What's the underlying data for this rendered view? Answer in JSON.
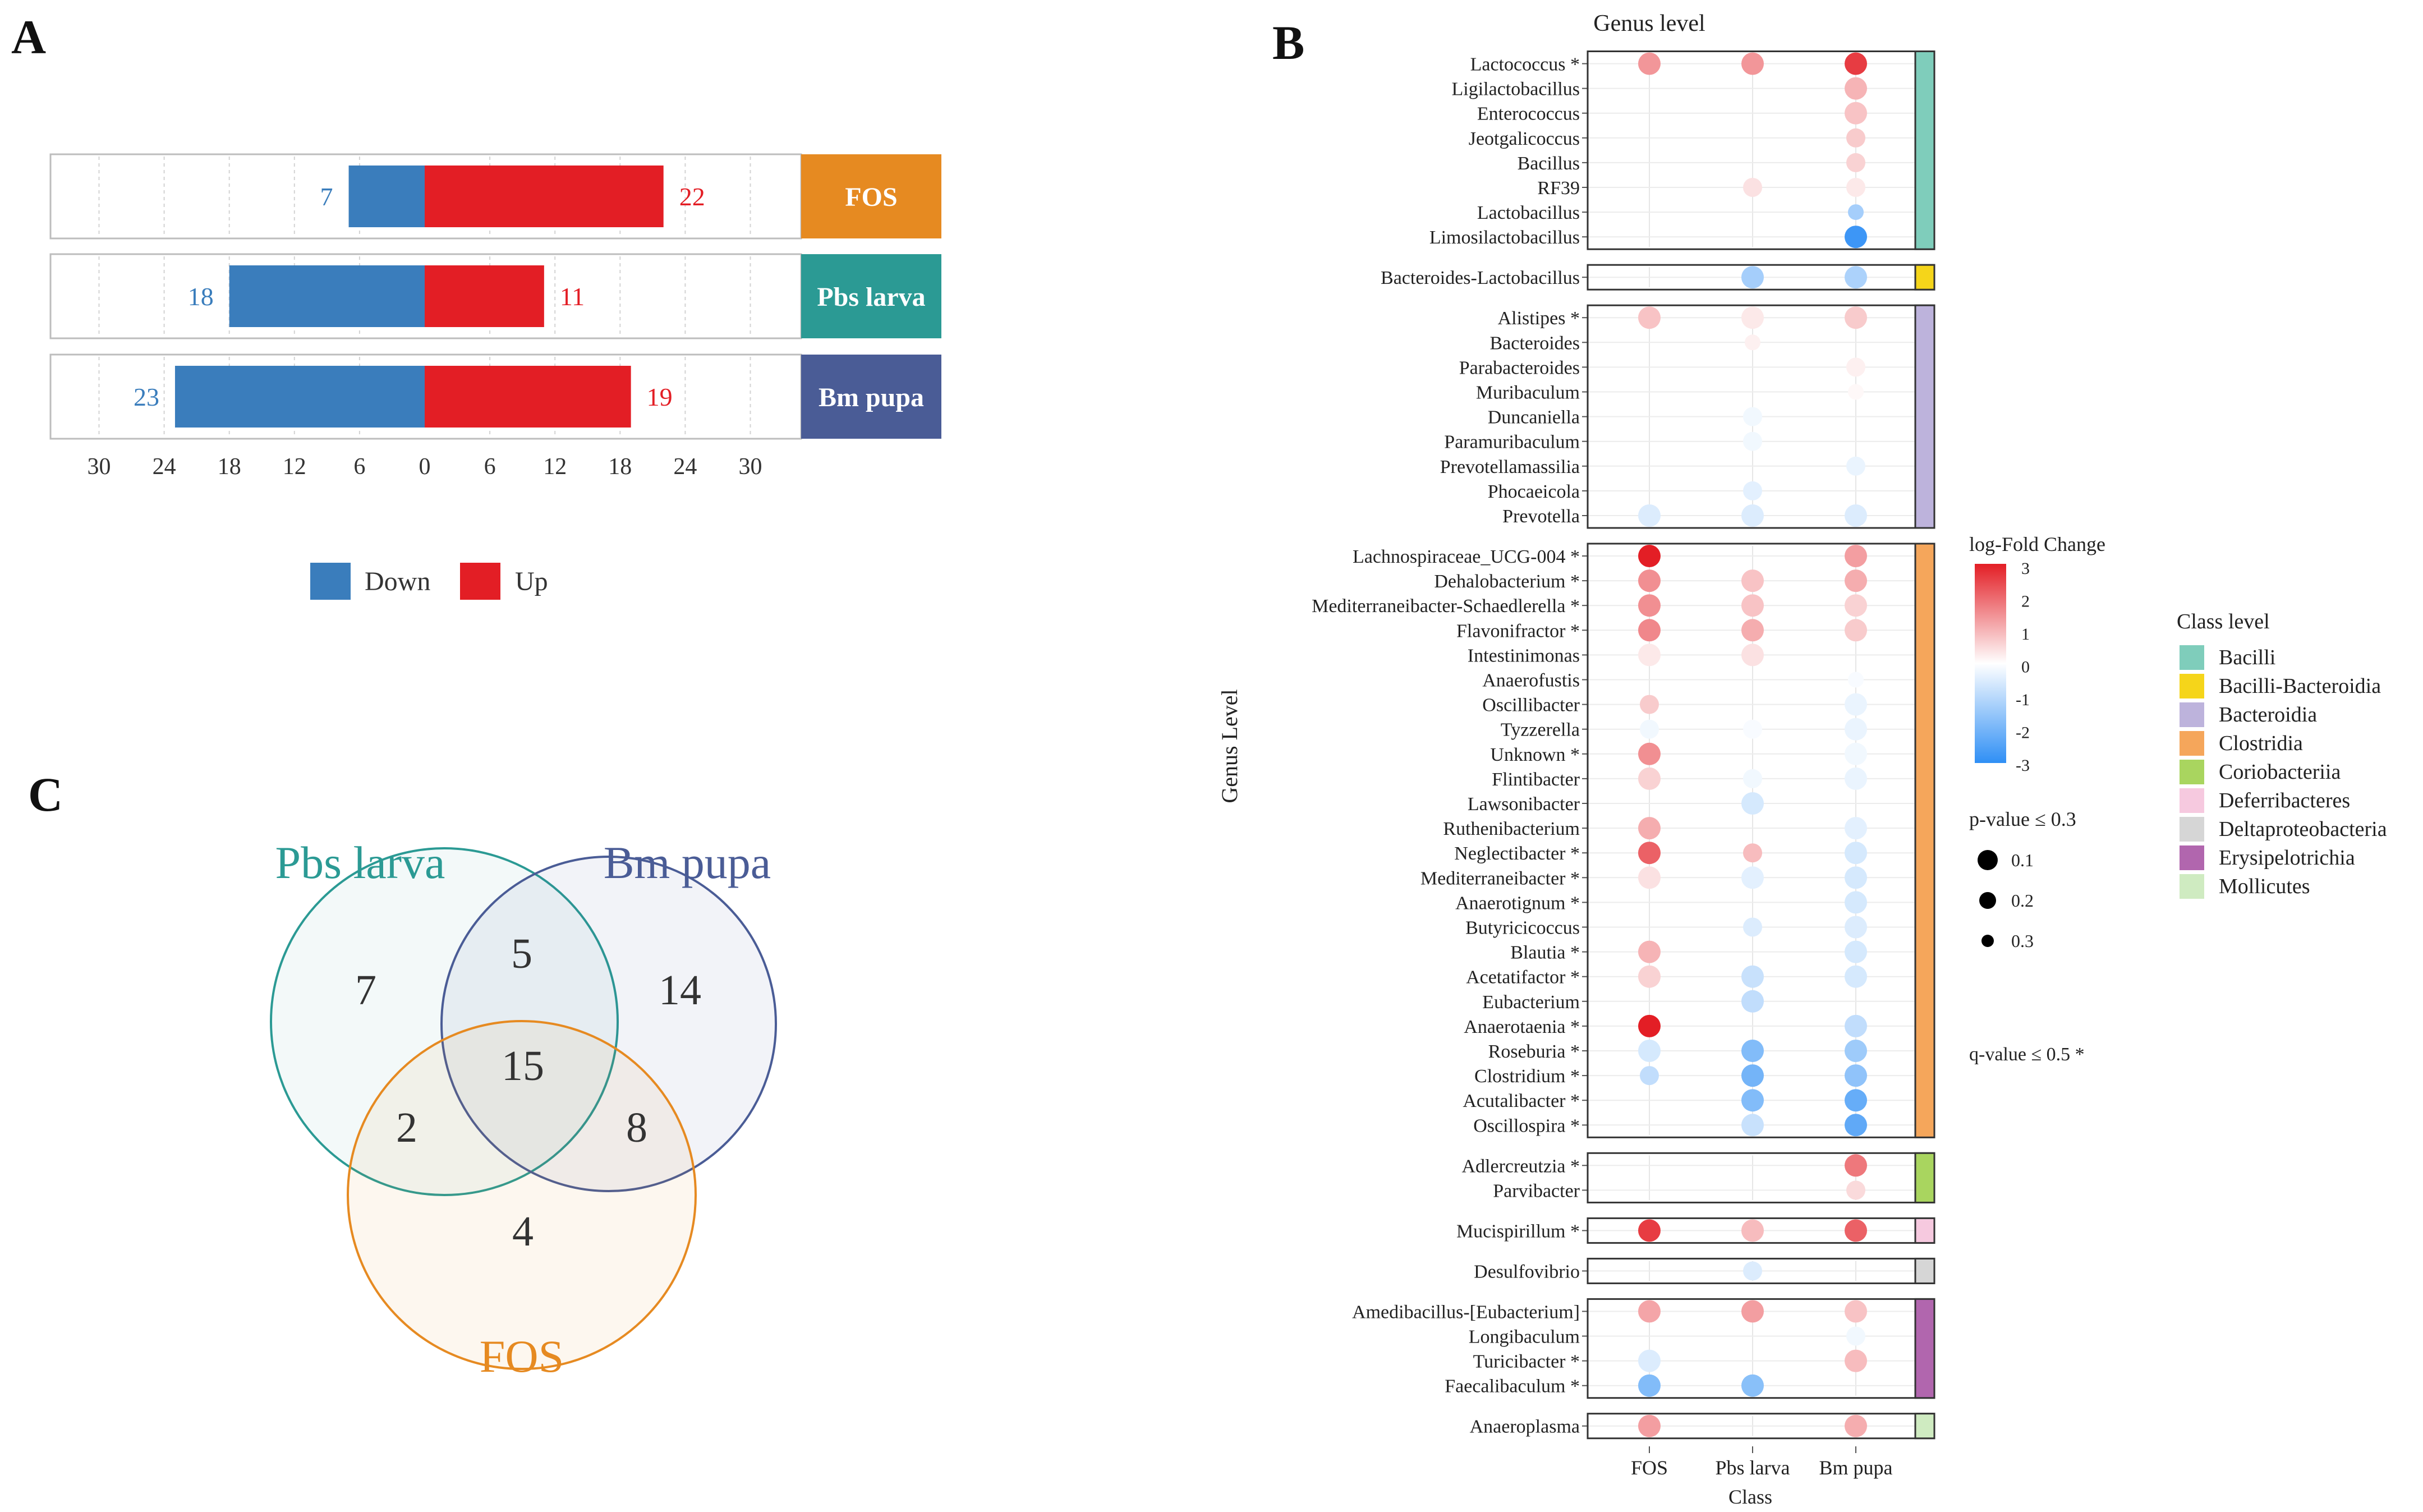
{
  "panel_labels": {
    "a": "A",
    "b": "B",
    "c": "C"
  },
  "chart_data": [
    {
      "type": "bar",
      "panel": "A",
      "orientation": "horizontal-diverging",
      "categories": [
        "FOS",
        "Pbs larva",
        "Bm pupa"
      ],
      "category_colors": [
        "#E68A21",
        "#2B9A94",
        "#4A5C96"
      ],
      "series": [
        {
          "name": "Down",
          "color": "#3A7DBC",
          "values": [
            7,
            18,
            23
          ]
        },
        {
          "name": "Up",
          "color": "#E31E25",
          "values": [
            22,
            11,
            19
          ]
        }
      ],
      "x_ticks": [
        "30",
        "24",
        "18",
        "12",
        "6",
        "0",
        "6",
        "12",
        "18",
        "24",
        "30"
      ],
      "xlim": [
        -30,
        30
      ],
      "grid": true,
      "legend_position": "bottom"
    },
    {
      "type": "heatmap",
      "panel": "B",
      "title": "Genus level",
      "xlabel": "Class",
      "ylabel": "Genus Level",
      "columns": [
        "FOS",
        "Pbs larva",
        "Bm pupa"
      ],
      "groups": [
        {
          "class": "Bacilli",
          "color": "#7FCDBB",
          "rows": [
            {
              "genus": "Lactococcus *",
              "values": [
                1.4,
                1.4,
                2.6
              ],
              "p": [
                0.1,
                0.1,
                0.1
              ]
            },
            {
              "genus": "Ligilactobacillus",
              "values": [
                null,
                null,
                1.0
              ],
              "p": [
                null,
                null,
                0.1
              ]
            },
            {
              "genus": "Enterococcus",
              "values": [
                null,
                null,
                0.8
              ],
              "p": [
                null,
                null,
                0.1
              ]
            },
            {
              "genus": "Jeotgalicoccus",
              "values": [
                null,
                null,
                0.7
              ],
              "p": [
                null,
                null,
                0.2
              ]
            },
            {
              "genus": "Bacillus",
              "values": [
                null,
                null,
                0.6
              ],
              "p": [
                null,
                null,
                0.2
              ]
            },
            {
              "genus": "RF39",
              "values": [
                null,
                0.4,
                0.3
              ],
              "p": [
                null,
                0.2,
                0.2
              ]
            },
            {
              "genus": "Lactobacillus",
              "values": [
                null,
                null,
                -1.3
              ],
              "p": [
                null,
                null,
                0.3
              ]
            },
            {
              "genus": "Limosilactobacillus",
              "values": [
                null,
                null,
                -2.8
              ],
              "p": [
                null,
                null,
                0.1
              ]
            }
          ]
        },
        {
          "class": "Bacilli-Bacteroidia",
          "color": "#F5D51A",
          "rows": [
            {
              "genus": "Bacteroides-Lactobacillus",
              "values": [
                null,
                -1.3,
                -1.2
              ],
              "p": [
                null,
                0.1,
                0.1
              ]
            }
          ]
        },
        {
          "class": "Bacteroidia",
          "color": "#BDB3DC",
          "rows": [
            {
              "genus": "Alistipes *",
              "values": [
                0.8,
                0.3,
                0.7
              ],
              "p": [
                0.1,
                0.1,
                0.1
              ]
            },
            {
              "genus": "Bacteroides",
              "values": [
                null,
                0.2,
                null
              ],
              "p": [
                null,
                0.3,
                null
              ]
            },
            {
              "genus": "Parabacteroides",
              "values": [
                null,
                null,
                0.2
              ],
              "p": [
                null,
                null,
                0.2
              ]
            },
            {
              "genus": "Muribaculum",
              "values": [
                null,
                null,
                0.1
              ],
              "p": [
                null,
                null,
                0.3
              ]
            },
            {
              "genus": "Duncaniella",
              "values": [
                null,
                -0.2,
                null
              ],
              "p": [
                null,
                0.2,
                null
              ]
            },
            {
              "genus": "Paramuribaculum",
              "values": [
                null,
                -0.2,
                null
              ],
              "p": [
                null,
                0.2,
                null
              ]
            },
            {
              "genus": "Prevotellamassilia",
              "values": [
                null,
                null,
                -0.3
              ],
              "p": [
                null,
                null,
                0.2
              ]
            },
            {
              "genus": "Phocaeicola",
              "values": [
                null,
                -0.4,
                null
              ],
              "p": [
                null,
                0.2,
                null
              ]
            },
            {
              "genus": "Prevotella",
              "values": [
                -0.5,
                -0.5,
                -0.5
              ],
              "p": [
                0.1,
                0.1,
                0.1
              ]
            }
          ]
        },
        {
          "class": "Clostridia",
          "color": "#F5A65B",
          "rows": [
            {
              "genus": "Lachnospiraceae_UCG-004 *",
              "values": [
                3.0,
                null,
                1.3
              ],
              "p": [
                0.1,
                null,
                0.1
              ]
            },
            {
              "genus": "Dehalobacterium *",
              "values": [
                1.5,
                0.8,
                1.1
              ],
              "p": [
                0.1,
                0.1,
                0.1
              ]
            },
            {
              "genus": "Mediterraneibacter-Schaedlerella *",
              "values": [
                1.5,
                0.8,
                0.6
              ],
              "p": [
                0.1,
                0.1,
                0.1
              ]
            },
            {
              "genus": "Flavonifractor *",
              "values": [
                1.6,
                1.1,
                0.7
              ],
              "p": [
                0.1,
                0.1,
                0.1
              ]
            },
            {
              "genus": "Intestinimonas",
              "values": [
                0.3,
                0.4,
                null
              ],
              "p": [
                0.1,
                0.1,
                null
              ]
            },
            {
              "genus": "Anaerofustis",
              "values": [
                null,
                null,
                -0.1
              ],
              "p": [
                null,
                null,
                0.3
              ]
            },
            {
              "genus": "Oscillibacter",
              "values": [
                0.7,
                null,
                -0.3
              ],
              "p": [
                0.2,
                null,
                0.1
              ]
            },
            {
              "genus": "Tyzzerella",
              "values": [
                -0.2,
                -0.1,
                -0.3
              ],
              "p": [
                0.2,
                0.2,
                0.1
              ]
            },
            {
              "genus": "Unknown *",
              "values": [
                1.5,
                null,
                -0.2
              ],
              "p": [
                0.1,
                null,
                0.1
              ]
            },
            {
              "genus": "Flintibacter",
              "values": [
                0.6,
                -0.2,
                -0.3
              ],
              "p": [
                0.1,
                0.2,
                0.1
              ]
            },
            {
              "genus": "Lawsonibacter",
              "values": [
                null,
                -0.6,
                null
              ],
              "p": [
                null,
                0.1,
                null
              ]
            },
            {
              "genus": "Ruthenibacterium",
              "values": [
                1.1,
                null,
                -0.4
              ],
              "p": [
                0.1,
                null,
                0.1
              ]
            },
            {
              "genus": "Neglectibacter *",
              "values": [
                2.1,
                0.9,
                -0.6
              ],
              "p": [
                0.1,
                0.2,
                0.1
              ]
            },
            {
              "genus": "Mediterraneibacter *",
              "values": [
                0.4,
                -0.4,
                -0.6
              ],
              "p": [
                0.1,
                0.1,
                0.1
              ]
            },
            {
              "genus": "Anaerotignum *",
              "values": [
                null,
                null,
                -0.6
              ],
              "p": [
                null,
                null,
                0.1
              ]
            },
            {
              "genus": "Butyricicoccus",
              "values": [
                null,
                -0.5,
                -0.5
              ],
              "p": [
                null,
                0.2,
                0.1
              ]
            },
            {
              "genus": "Blautia *",
              "values": [
                1.0,
                null,
                -0.6
              ],
              "p": [
                0.1,
                null,
                0.1
              ]
            },
            {
              "genus": "Acetatifactor *",
              "values": [
                0.6,
                -0.8,
                -0.6
              ],
              "p": [
                0.1,
                0.1,
                0.1
              ]
            },
            {
              "genus": "Eubacterium",
              "values": [
                null,
                -0.9,
                null
              ],
              "p": [
                null,
                0.1,
                null
              ]
            },
            {
              "genus": "Anaerotaenia *",
              "values": [
                3.0,
                null,
                -0.9
              ],
              "p": [
                0.1,
                null,
                0.1
              ]
            },
            {
              "genus": "Roseburia *",
              "values": [
                -0.6,
                -1.8,
                -1.4
              ],
              "p": [
                0.1,
                0.1,
                0.1
              ]
            },
            {
              "genus": "Clostridium *",
              "values": [
                -0.9,
                -2.0,
                -1.6
              ],
              "p": [
                0.2,
                0.1,
                0.1
              ]
            },
            {
              "genus": "Acutalibacter *",
              "values": [
                null,
                -1.8,
                -2.2
              ],
              "p": [
                null,
                0.1,
                0.1
              ]
            },
            {
              "genus": "Oscillospira *",
              "values": [
                null,
                -0.8,
                -2.3
              ],
              "p": [
                null,
                0.1,
                0.1
              ]
            }
          ]
        },
        {
          "class": "Coriobacteriia",
          "color": "#A9D55F",
          "rows": [
            {
              "genus": "Adlercreutzia *",
              "values": [
                null,
                null,
                1.8
              ],
              "p": [
                null,
                null,
                0.1
              ]
            },
            {
              "genus": "Parvibacter",
              "values": [
                null,
                null,
                0.5
              ],
              "p": [
                null,
                null,
                0.2
              ]
            }
          ]
        },
        {
          "class": "Deferribacteres",
          "color": "#F6C9DF",
          "rows": [
            {
              "genus": "Mucispirillum *",
              "values": [
                2.6,
                0.9,
                2.1
              ],
              "p": [
                0.1,
                0.1,
                0.1
              ]
            }
          ]
        },
        {
          "class": "Deltaproteobacteria",
          "color": "#D6D6D6",
          "rows": [
            {
              "genus": "Desulfovibrio",
              "values": [
                null,
                -0.5,
                null
              ],
              "p": [
                null,
                0.2,
                null
              ]
            }
          ]
        },
        {
          "class": "Erysipelotrichia",
          "color": "#B166AE",
          "rows": [
            {
              "genus": "Amedibacillus-[Eubacterium]",
              "values": [
                1.2,
                1.3,
                0.8
              ],
              "p": [
                0.1,
                0.1,
                0.1
              ]
            },
            {
              "genus": "Longibaculum",
              "values": [
                null,
                null,
                -0.2
              ],
              "p": [
                null,
                null,
                0.2
              ]
            },
            {
              "genus": "Turicibacter *",
              "values": [
                -0.5,
                null,
                0.9
              ],
              "p": [
                0.1,
                null,
                0.1
              ]
            },
            {
              "genus": "Faecalibaculum *",
              "values": [
                -1.8,
                -1.7,
                null
              ],
              "p": [
                0.1,
                0.1,
                null
              ]
            }
          ]
        },
        {
          "class": "Mollicutes",
          "color": "#CFEBC1",
          "rows": [
            {
              "genus": "Anaeroplasma",
              "values": [
                1.3,
                null,
                1.1
              ],
              "p": [
                0.1,
                null,
                0.1
              ]
            }
          ]
        }
      ],
      "color_legend": {
        "title": "log-Fold Change",
        "ticks": [
          "3",
          "2",
          "1",
          "0",
          "-1",
          "-2",
          "-3"
        ],
        "range": [
          -3,
          3
        ]
      },
      "size_legend": {
        "title": "p-value ≤ 0.3",
        "labels": [
          "0.1",
          "0.2",
          "0.3"
        ]
      },
      "q_note": "q-value ≤ 0.5 *",
      "class_legend": {
        "title": "Class level",
        "items": [
          {
            "label": "Bacilli",
            "color": "#7FCDBB"
          },
          {
            "label": "Bacilli-Bacteroidia",
            "color": "#F5D51A"
          },
          {
            "label": "Bacteroidia",
            "color": "#BDB3DC"
          },
          {
            "label": "Clostridia",
            "color": "#F5A65B"
          },
          {
            "label": "Coriobacteriia",
            "color": "#A9D55F"
          },
          {
            "label": "Deferribacteres",
            "color": "#F6C9DF"
          },
          {
            "label": "Deltaproteobacteria",
            "color": "#D6D6D6"
          },
          {
            "label": "Erysipelotrichia",
            "color": "#B166AE"
          },
          {
            "label": "Mollicutes",
            "color": "#CFEBC1"
          }
        ]
      }
    },
    {
      "type": "venn",
      "panel": "C",
      "sets": [
        {
          "name": "Pbs larva",
          "color": "#2B9A94"
        },
        {
          "name": "Bm pupa",
          "color": "#4A5C96"
        },
        {
          "name": "FOS",
          "color": "#E68A21"
        }
      ],
      "regions": {
        "pbs_only": "7",
        "bm_only": "14",
        "fos_only": "4",
        "pbs_bm": "5",
        "pbs_fos": "2",
        "bm_fos": "8",
        "all": "15"
      }
    }
  ]
}
